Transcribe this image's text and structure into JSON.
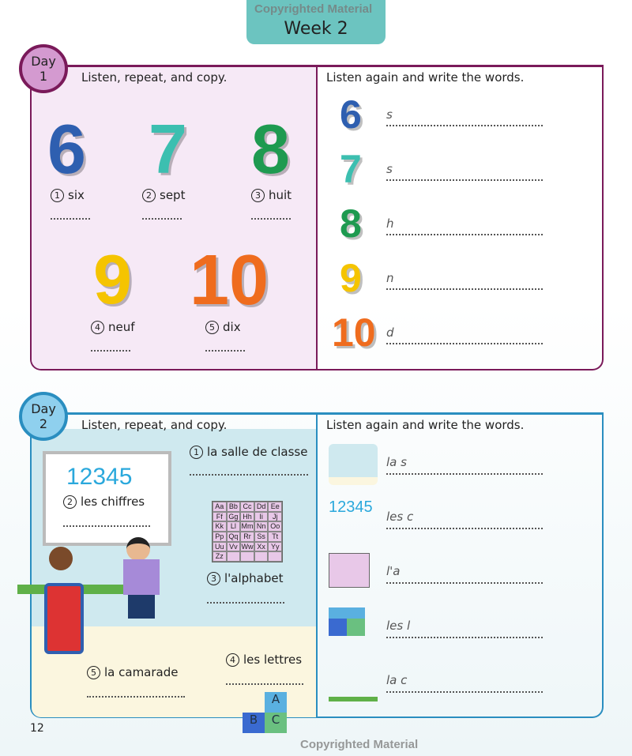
{
  "header": {
    "week": "Week 2",
    "watermark": "Copyrighted Material"
  },
  "day1": {
    "badge_line1": "Day",
    "badge_line2": "1",
    "instruction_left": "Listen, repeat, and copy.",
    "instruction_right": "Listen again and write the words.",
    "numbers": [
      {
        "digit": "6",
        "num": "1",
        "word": "six",
        "color": "#2e5fb0"
      },
      {
        "digit": "7",
        "num": "2",
        "word": "sept",
        "color": "#3cbfb0"
      },
      {
        "digit": "8",
        "num": "3",
        "word": "huit",
        "color": "#1e9a50"
      },
      {
        "digit": "9",
        "num": "4",
        "word": "neuf",
        "color": "#f5c400"
      },
      {
        "digit": "10",
        "num": "5",
        "word": "dix",
        "color": "#ef6c1e"
      }
    ],
    "hints": [
      "s",
      "s",
      "h",
      "n",
      "d"
    ]
  },
  "day2": {
    "badge_line1": "Day",
    "badge_line2": "2",
    "instruction_left": "Listen, repeat, and copy.",
    "instruction_right": "Listen again and write the words.",
    "board_numbers": "12345",
    "items": [
      {
        "num": "1",
        "word": "la salle de classe"
      },
      {
        "num": "2",
        "word": "les chiffres"
      },
      {
        "num": "3",
        "word": "l'alphabet"
      },
      {
        "num": "4",
        "word": "les lettres"
      },
      {
        "num": "5",
        "word": "la camarade"
      }
    ],
    "alphabet": [
      "Aa",
      "Bb",
      "Cc",
      "Dd",
      "Ee",
      "Ff",
      "Gg",
      "Hh",
      "Ii",
      "Jj",
      "Kk",
      "Ll",
      "Mm",
      "Nn",
      "Oo",
      "Pp",
      "Qq",
      "Rr",
      "Ss",
      "Tt",
      "Uu",
      "Vv",
      "Ww",
      "Xx",
      "Yy",
      "Zz",
      "",
      "",
      "",
      ""
    ],
    "blocks": [
      "A",
      "B",
      "C"
    ],
    "hints": [
      "la s",
      "les c",
      "l'a",
      "les l",
      "la c"
    ]
  },
  "footer": {
    "page": "12",
    "watermark": "Copyrighted Material"
  }
}
